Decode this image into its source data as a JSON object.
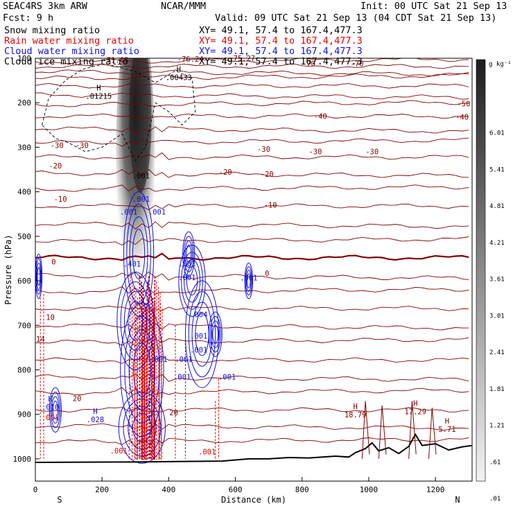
{
  "header": {
    "line1_left": "SEAC4RS  3km ARW",
    "line1_mid": "NCAR/MMM",
    "line1_right": "Init: 00 UTC Sat 21 Sep 13",
    "line2_left": "Fcst:   9 h",
    "line2_right": "Valid: 09 UTC Sat 21 Sep 13 (04 CDT Sat 21 Sep 13)",
    "fields": [
      {
        "name": "Snow mixing ratio",
        "xy": "XY=  49.1, 57.4 to 167.4,477.3",
        "color": "#000000"
      },
      {
        "name": "Rain water mixing ratio",
        "xy": "XY=  49.1, 57.4 to 167.4,477.3",
        "color": "#e60000"
      },
      {
        "name": "Cloud water mixing ratio",
        "xy": "XY=  49.1, 57.4 to 167.4,477.3",
        "color": "#1010e0"
      },
      {
        "name": "Cloud ice mixing ratio",
        "xy": "XY=  49.1, 57.4 to 167.4,477.3",
        "color": "#000000"
      }
    ]
  },
  "colors": {
    "isotherm": "#800000",
    "freezing": "#800000",
    "rain": "#e60000",
    "cloud": "#1010e0",
    "terrain": "#000000",
    "snow_shade": "#1a1a1a"
  },
  "chart_data": {
    "type": "contour cross-section",
    "xlabel": "Distance (km)",
    "ylabel": "Pressure (hPa)",
    "xlim": [
      0,
      1310
    ],
    "ylim": [
      1050,
      100
    ],
    "x_ticks": [
      "0",
      "200",
      "400",
      "600",
      "800",
      "1000",
      "1200"
    ],
    "x_tick_values": [
      0,
      200,
      400,
      600,
      800,
      1000,
      1200
    ],
    "y_ticks": [
      "100",
      "200",
      "300",
      "400",
      "500",
      "600",
      "700",
      "800",
      "900",
      "1000"
    ],
    "y_tick_values": [
      100,
      200,
      300,
      400,
      500,
      600,
      700,
      800,
      900,
      1000
    ],
    "south_label": "S",
    "north_label": "N",
    "colorbar": {
      "unit": "g kg⁻¹",
      "levels": [
        "6.61",
        "6.01",
        "5.41",
        "4.81",
        "4.21",
        "3.61",
        "3.01",
        "2.41",
        "1.81",
        "1.21",
        ".61",
        ".01"
      ]
    },
    "temperature_labels": [
      {
        "text": "-71.65",
        "x": 240,
        "p": 110
      },
      {
        "text": "-76.24",
        "x": 465,
        "p": 108
      },
      {
        "text": "-75.27",
        "x": 620,
        "p": 106
      },
      {
        "text": "-70",
        "x": 820,
        "p": 118
      },
      {
        "text": "-70",
        "x": 965,
        "p": 118
      },
      {
        "text": "-50",
        "x": 1285,
        "p": 208
      },
      {
        "text": "-40",
        "x": 855,
        "p": 236
      },
      {
        "text": "-40",
        "x": 1280,
        "p": 238
      },
      {
        "text": "-30",
        "x": 65,
        "p": 302
      },
      {
        "text": "-30",
        "x": 140,
        "p": 302
      },
      {
        "text": "-30",
        "x": 685,
        "p": 310
      },
      {
        "text": "-30",
        "x": 840,
        "p": 316
      },
      {
        "text": "-30",
        "x": 1010,
        "p": 316
      },
      {
        "text": "-20",
        "x": 60,
        "p": 348
      },
      {
        "text": "-20",
        "x": 570,
        "p": 362
      },
      {
        "text": "-20",
        "x": 695,
        "p": 366
      },
      {
        "text": "-10",
        "x": 75,
        "p": 422
      },
      {
        "text": "-10",
        "x": 705,
        "p": 436
      },
      {
        "text": "0",
        "x": 55,
        "p": 563
      },
      {
        "text": "0",
        "x": 695,
        "p": 589
      },
      {
        "text": "10",
        "x": 45,
        "p": 688
      },
      {
        "text": "14",
        "x": 15,
        "p": 737
      },
      {
        "text": "20",
        "x": 125,
        "p": 870
      },
      {
        "text": "20",
        "x": 415,
        "p": 902
      }
    ],
    "extrema": [
      {
        "text": "H",
        "value": ".01215",
        "x": 190,
        "p": 182
      },
      {
        "text": "H",
        "value": ".00433",
        "x": 430,
        "p": 140
      },
      {
        "text": "H",
        "value": ".010",
        "x": 45,
        "p": 880
      },
      {
        "text": "H",
        "value": ".028",
        "x": 180,
        "p": 908
      },
      {
        "text": "H",
        "value": "18.79",
        "x": 960,
        "p": 897
      },
      {
        "text": "H",
        "value": "17.29",
        "x": 1140,
        "p": 890
      },
      {
        "text": "H",
        "value": "5.71",
        "x": 1235,
        "p": 930
      }
    ],
    "hydrometeor_labels": [
      {
        "text": ".001",
        "x": 317,
        "p": 370,
        "color": "#000000"
      },
      {
        "text": ".001",
        "x": 317,
        "p": 422,
        "color": "#1010e0"
      },
      {
        "text": ".001",
        "x": 280,
        "p": 451,
        "color": "#1010e0"
      },
      {
        "text": ".001",
        "x": 365,
        "p": 451,
        "color": "#1010e0"
      },
      {
        "text": ".401",
        "x": 290,
        "p": 568,
        "color": "#1010e0"
      },
      {
        "text": ".001",
        "x": 455,
        "p": 567,
        "color": "#1010e0"
      },
      {
        "text": ".001",
        "x": 455,
        "p": 598,
        "color": "#1010e0"
      },
      {
        "text": ".001",
        "x": 640,
        "p": 599,
        "color": "#1010e0"
      },
      {
        "text": ".004",
        "x": 490,
        "p": 682,
        "color": "#1010e0"
      },
      {
        "text": ".001",
        "x": 490,
        "p": 730,
        "color": "#1010e0"
      },
      {
        "text": ".001",
        "x": 490,
        "p": 761,
        "color": "#1010e0"
      },
      {
        "text": ".001",
        "x": 445,
        "p": 782,
        "color": "#1010e0"
      },
      {
        "text": ".001",
        "x": 370,
        "p": 782,
        "color": "#1010e0"
      },
      {
        "text": ".001",
        "x": 575,
        "p": 822,
        "color": "#1010e0"
      },
      {
        "text": ".001",
        "x": 440,
        "p": 822,
        "color": "#1010e0"
      },
      {
        "text": ".001",
        "x": 45,
        "p": 913,
        "color": "#e60000"
      },
      {
        "text": ".001",
        "x": 250,
        "p": 988,
        "color": "#e60000"
      },
      {
        "text": ".001",
        "x": 515,
        "p": 990,
        "color": "#e60000"
      }
    ],
    "terrain_profile": {
      "x": [
        0,
        300,
        560,
        640,
        700,
        760,
        820,
        900,
        940,
        960,
        990,
        1010,
        1030,
        1060,
        1090,
        1120,
        1140,
        1160,
        1200,
        1240,
        1280,
        1310
      ],
      "p": [
        1008,
        1007,
        1005,
        1000,
        1000,
        997,
        998,
        994,
        996,
        986,
        977,
        964,
        982,
        975,
        988,
        972,
        945,
        970,
        966,
        980,
        973,
        970
      ]
    }
  }
}
